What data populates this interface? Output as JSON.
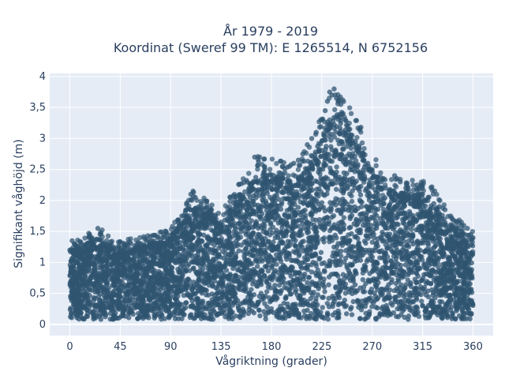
{
  "chart_data": {
    "type": "scatter",
    "title_line1": "År 1979 - 2019",
    "title_line2": "Koordinat (Sweref 99 TM): E 1265514, N 6752156",
    "xlabel": "Vågriktning (grader)",
    "ylabel": "Signifikant våghöjd (m)",
    "xlim": [
      -18,
      378
    ],
    "ylim": [
      -0.18,
      4.05
    ],
    "x_ticks": [
      0,
      45,
      90,
      135,
      180,
      225,
      270,
      315,
      360
    ],
    "x_tick_labels": [
      "0",
      "45",
      "90",
      "135",
      "180",
      "225",
      "270",
      "315",
      "360"
    ],
    "y_ticks": [
      0,
      0.5,
      1,
      1.5,
      2,
      2.5,
      3,
      3.5,
      4
    ],
    "y_tick_labels": [
      "0",
      "0,5",
      "1",
      "1,5",
      "2",
      "2,5",
      "3",
      "3,5",
      "4"
    ],
    "grid": true,
    "legend": "none",
    "marker_color": "#2f5470",
    "plot_background": "#e5ecf6",
    "points_note_envelope": [
      {
        "x": 0,
        "y": 1.3
      },
      {
        "x": 10,
        "y": 1.35
      },
      {
        "x": 25,
        "y": 1.55
      },
      {
        "x": 40,
        "y": 1.3
      },
      {
        "x": 70,
        "y": 1.4
      },
      {
        "x": 90,
        "y": 1.5
      },
      {
        "x": 110,
        "y": 2.1
      },
      {
        "x": 135,
        "y": 1.8
      },
      {
        "x": 170,
        "y": 2.7
      },
      {
        "x": 200,
        "y": 2.5
      },
      {
        "x": 215,
        "y": 2.85
      },
      {
        "x": 235,
        "y": 3.8
      },
      {
        "x": 245,
        "y": 3.6
      },
      {
        "x": 260,
        "y": 3.1
      },
      {
        "x": 280,
        "y": 2.4
      },
      {
        "x": 300,
        "y": 2.3
      },
      {
        "x": 320,
        "y": 2.25
      },
      {
        "x": 340,
        "y": 1.75
      },
      {
        "x": 355,
        "y": 1.55
      },
      {
        "x": 360,
        "y": 1.45
      }
    ],
    "series": [
      {
        "x": [
          0,
          2,
          4,
          6,
          3,
          7,
          1,
          5,
          8,
          12,
          15,
          18,
          20,
          22,
          25,
          27,
          30,
          33,
          36,
          40,
          44,
          48,
          52,
          56,
          60,
          64,
          68,
          72,
          76,
          80,
          84,
          88,
          92,
          96,
          100,
          104,
          108,
          110,
          112,
          115,
          118,
          122,
          126,
          130,
          135,
          140,
          145,
          150,
          155,
          160,
          165,
          168,
          172,
          176,
          180,
          184,
          188,
          192,
          196,
          200,
          204,
          208,
          212,
          216,
          220,
          224,
          228,
          230,
          232,
          234,
          236,
          238,
          240,
          242,
          244,
          246,
          248,
          250,
          252,
          255,
          258,
          262,
          266,
          270,
          274,
          278,
          282,
          286,
          290,
          295,
          300,
          305,
          310,
          315,
          320,
          325,
          330,
          335,
          340,
          345,
          350,
          355,
          358,
          360
        ],
        "y": [
          1.2,
          1.35,
          1.3,
          1.25,
          1.05,
          1.1,
          0.9,
          1.15,
          1.2,
          1.15,
          1.18,
          1.2,
          1.2,
          1.25,
          1.55,
          1.45,
          1.25,
          1.3,
          1.28,
          1.22,
          1.25,
          1.25,
          1.28,
          1.2,
          1.2,
          1.3,
          1.35,
          1.42,
          1.25,
          1.3,
          1.25,
          1.3,
          1.45,
          1.55,
          1.75,
          1.85,
          2.1,
          2.15,
          2.05,
          1.9,
          1.85,
          1.75,
          1.8,
          1.75,
          1.65,
          1.8,
          1.75,
          1.9,
          2.05,
          2.2,
          2.7,
          2.15,
          2.25,
          2.4,
          2.2,
          2.3,
          2.35,
          2.45,
          2.55,
          2.6,
          2.65,
          2.75,
          2.9,
          3.0,
          3.1,
          3.3,
          3.45,
          3.6,
          3.75,
          3.7,
          3.8,
          3.65,
          3.6,
          3.55,
          3.4,
          3.3,
          3.2,
          3.15,
          3.05,
          2.95,
          2.85,
          2.75,
          2.6,
          2.5,
          2.35,
          2.3,
          2.2,
          2.15,
          2.4,
          2.3,
          2.2,
          2.1,
          2.25,
          2.1,
          2.05,
          1.95,
          1.9,
          1.85,
          1.75,
          1.65,
          1.6,
          1.55,
          1.45,
          1.4
        ]
      }
    ]
  }
}
